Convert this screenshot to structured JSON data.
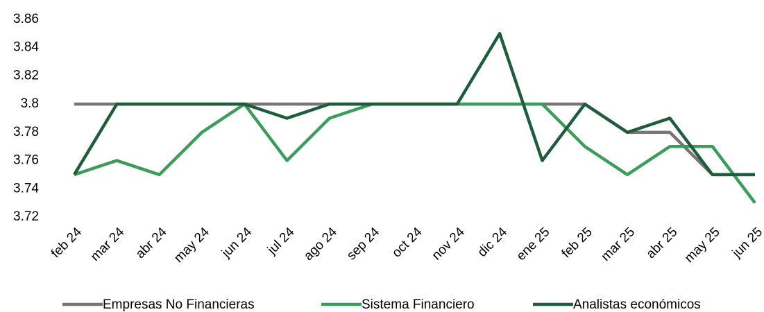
{
  "chart_data": {
    "type": "line",
    "categories": [
      "feb 24",
      "mar 24",
      "abr 24",
      "may 24",
      "jun 24",
      "jul 24",
      "ago 24",
      "sep 24",
      "oct 24",
      "nov 24",
      "dic 24",
      "ene 25",
      "feb 25",
      "mar 25",
      "abr 25",
      "may 25",
      "jun 25"
    ],
    "series": [
      {
        "name": "Empresas No Financieras",
        "color": "#767676",
        "values": [
          3.8,
          3.8,
          3.8,
          3.8,
          3.8,
          3.8,
          3.8,
          3.8,
          3.8,
          3.8,
          3.8,
          3.8,
          3.8,
          3.78,
          3.78,
          3.75,
          3.75
        ]
      },
      {
        "name": "Sistema Financiero",
        "color": "#3d9b5c",
        "values": [
          3.75,
          3.76,
          3.75,
          3.78,
          3.8,
          3.76,
          3.79,
          3.8,
          3.8,
          3.8,
          3.8,
          3.8,
          3.77,
          3.75,
          3.77,
          3.77,
          3.73
        ]
      },
      {
        "name": "Analistas económicos",
        "color": "#1f5c3b",
        "values": [
          3.75,
          3.8,
          3.8,
          3.8,
          3.8,
          3.79,
          3.8,
          3.8,
          3.8,
          3.8,
          3.85,
          3.76,
          3.8,
          3.78,
          3.79,
          3.75,
          3.75
        ]
      }
    ],
    "ylim": [
      3.72,
      3.86
    ],
    "yticks": [
      3.72,
      3.74,
      3.76,
      3.78,
      3.8,
      3.82,
      3.84,
      3.86
    ],
    "grid": false
  }
}
